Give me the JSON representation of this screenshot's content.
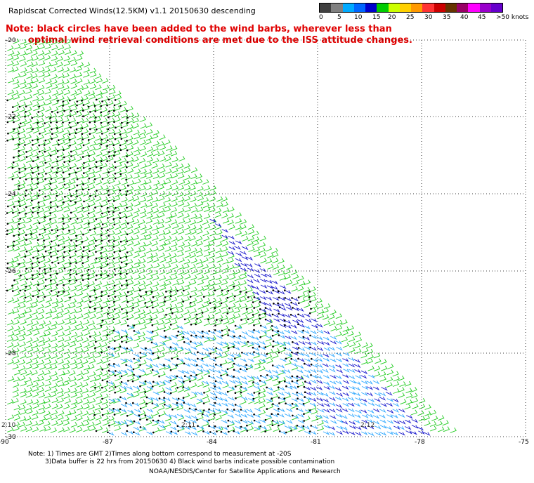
{
  "title": "Rapidscat Corrected Winds(12.5KM) v1.1 20150630 descending",
  "note_line1": "Note: black circles have been added to the wind barbs, wherever less than",
  "note_line2": "optimal wind retrieval conditions are met due to the ISS attitude changes.",
  "legend": {
    "colors": [
      "#404040",
      "#808080",
      "#00aaff",
      "#0066ff",
      "#0000cc",
      "#00cc00",
      "#ccff00",
      "#ffd000",
      "#ff9900",
      "#ff3333",
      "#cc0000",
      "#663300",
      "#990066",
      "#ff00ff",
      "#9900cc",
      "#6600cc"
    ],
    "labels": [
      "0",
      "5",
      "10",
      "15",
      "20",
      "25",
      "30",
      "35",
      "40",
      "45",
      ">50 knots"
    ]
  },
  "map": {
    "lat_labels": [
      "-20",
      "-22",
      "-24",
      "-26",
      "-28",
      "-30"
    ],
    "lon_labels": [
      "-90",
      "-87",
      "-84",
      "-81",
      "-78",
      "-75"
    ],
    "time_labels": [
      "2:10",
      "2:11",
      "2:12"
    ]
  },
  "footer": {
    "line1": "Note: 1) Times are GMT 2)Times along bottom correspond to measurement at -20S",
    "line2": "3)Data buffer is 22 hrs from 20150630 4) Black wind barbs indicate possible contamination",
    "line3": "NOAA/NESDIS/Center for Satellite Applications and Research"
  },
  "colors": {
    "green": "#22cc22",
    "blue": "#1a1acc",
    "lightblue": "#33aaff",
    "grid": "#000000",
    "note": "#e00000"
  }
}
